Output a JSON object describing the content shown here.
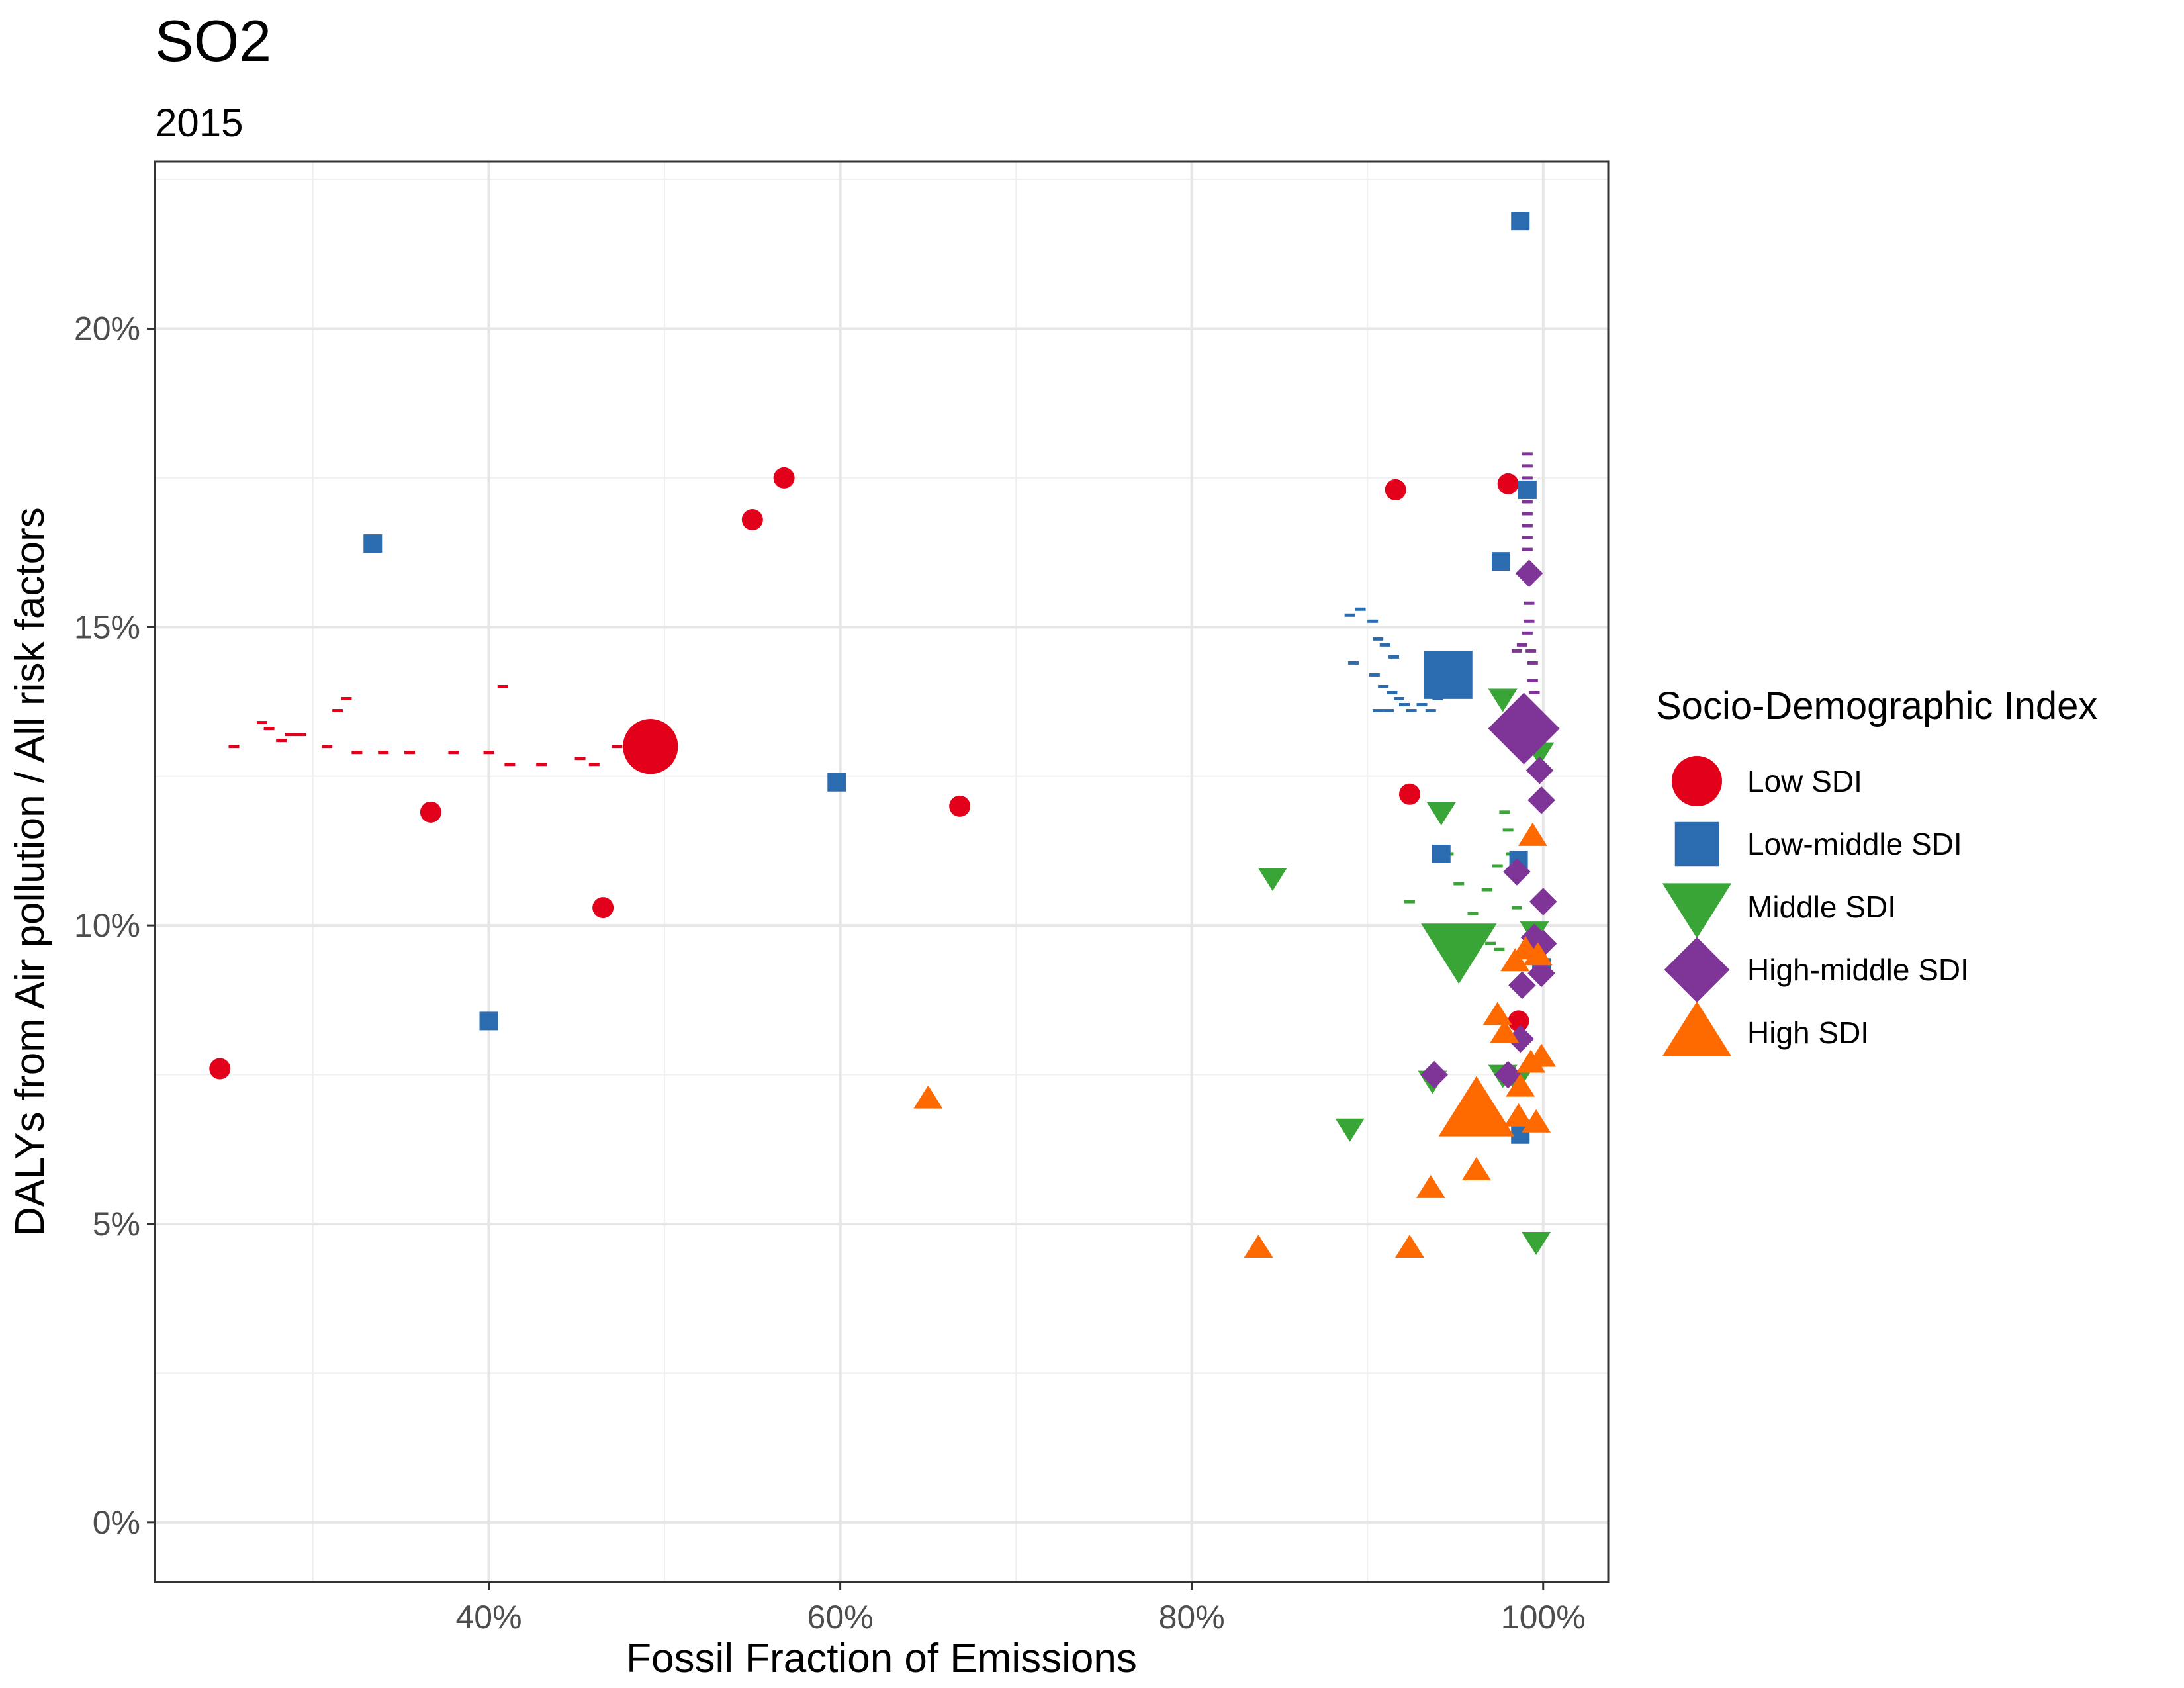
{
  "chart_data": {
    "type": "scatter",
    "title": "SO2",
    "subtitle": "2015",
    "xlabel": "Fossil Fraction of Emissions",
    "ylabel": "DALYs from Air pollution / All risk factors",
    "xlim": [
      0.21,
      1.037
    ],
    "ylim": [
      -0.01,
      0.228
    ],
    "x_ticks": [
      0.4,
      0.6,
      0.8,
      1.0
    ],
    "x_tick_labels": [
      "40%",
      "60%",
      "80%",
      "100%"
    ],
    "y_ticks": [
      0,
      0.05,
      0.1,
      0.15,
      0.2
    ],
    "y_tick_labels": [
      "0%",
      "5%",
      "10%",
      "15%",
      "20%"
    ],
    "grid": true,
    "legend": {
      "title": "Socio-Demographic Index",
      "position": "right",
      "entries": [
        {
          "label": "Low SDI",
          "color": "#e3001b",
          "shape": "circle"
        },
        {
          "label": "Low-middle SDI",
          "color": "#2b6cb0",
          "shape": "square"
        },
        {
          "label": "Middle SDI",
          "color": "#3aa537",
          "shape": "triangle-down"
        },
        {
          "label": "High-middle SDI",
          "color": "#7f3498",
          "shape": "diamond"
        },
        {
          "label": "High SDI",
          "color": "#ff6a00",
          "shape": "triangle-up"
        }
      ]
    },
    "series": [
      {
        "name": "Low SDI",
        "color": "#e3001b",
        "shape": "circle",
        "points": [
          [
            0.247,
            0.076,
            1
          ],
          [
            0.367,
            0.119,
            1
          ],
          [
            0.465,
            0.103,
            1
          ],
          [
            0.492,
            0.13,
            2.6
          ],
          [
            0.55,
            0.168,
            1
          ],
          [
            0.568,
            0.175,
            1
          ],
          [
            0.668,
            0.12,
            1
          ],
          [
            0.916,
            0.173,
            1
          ],
          [
            0.924,
            0.122,
            1
          ],
          [
            0.98,
            0.174,
            1
          ],
          [
            0.986,
            0.084,
            1
          ]
        ],
        "trail": [
          [
            0.255,
            0.13
          ],
          [
            0.271,
            0.134
          ],
          [
            0.275,
            0.133
          ],
          [
            0.282,
            0.131
          ],
          [
            0.287,
            0.132
          ],
          [
            0.293,
            0.132
          ],
          [
            0.308,
            0.13
          ],
          [
            0.314,
            0.136
          ],
          [
            0.319,
            0.138
          ],
          [
            0.325,
            0.129
          ],
          [
            0.34,
            0.129
          ],
          [
            0.355,
            0.129
          ],
          [
            0.38,
            0.129
          ],
          [
            0.4,
            0.129
          ],
          [
            0.412,
            0.127
          ],
          [
            0.43,
            0.127
          ],
          [
            0.452,
            0.128
          ],
          [
            0.46,
            0.127
          ],
          [
            0.473,
            0.13
          ],
          [
            0.408,
            0.14
          ]
        ]
      },
      {
        "name": "Low-middle SDI",
        "color": "#2b6cb0",
        "shape": "square",
        "points": [
          [
            0.334,
            0.164,
            1
          ],
          [
            0.4,
            0.084,
            1
          ],
          [
            0.598,
            0.124,
            1
          ],
          [
            0.942,
            0.112,
            1
          ],
          [
            0.946,
            0.142,
            2.6
          ],
          [
            0.976,
            0.161,
            1
          ],
          [
            0.986,
            0.111,
            1
          ],
          [
            0.987,
            0.065,
            1
          ],
          [
            0.987,
            0.218,
            1
          ],
          [
            0.991,
            0.173,
            1
          ],
          [
            0.999,
            0.093,
            1
          ]
        ],
        "trail": [
          [
            0.89,
            0.152
          ],
          [
            0.896,
            0.153
          ],
          [
            0.903,
            0.151
          ],
          [
            0.906,
            0.148
          ],
          [
            0.91,
            0.147
          ],
          [
            0.915,
            0.145
          ],
          [
            0.892,
            0.144
          ],
          [
            0.904,
            0.142
          ],
          [
            0.909,
            0.14
          ],
          [
            0.914,
            0.139
          ],
          [
            0.918,
            0.138
          ],
          [
            0.921,
            0.137
          ],
          [
            0.906,
            0.136
          ],
          [
            0.912,
            0.136
          ],
          [
            0.925,
            0.136
          ],
          [
            0.931,
            0.137
          ],
          [
            0.936,
            0.136
          ],
          [
            0.94,
            0.138
          ]
        ]
      },
      {
        "name": "Middle SDI",
        "color": "#3aa537",
        "shape": "triangle-down",
        "points": [
          [
            0.846,
            0.108,
            1
          ],
          [
            0.89,
            0.066,
            1
          ],
          [
            0.937,
            0.074,
            1
          ],
          [
            0.942,
            0.119,
            1
          ],
          [
            0.952,
            0.096,
            2.6
          ],
          [
            0.977,
            0.138,
            1
          ],
          [
            0.977,
            0.075,
            1
          ],
          [
            0.985,
            0.074,
            1
          ],
          [
            0.995,
            0.099,
            1
          ],
          [
            0.996,
            0.047,
            1
          ],
          [
            0.998,
            0.129,
            1
          ]
        ],
        "trail": [
          [
            0.924,
            0.104
          ],
          [
            0.946,
            0.112
          ],
          [
            0.952,
            0.107
          ],
          [
            0.96,
            0.102
          ],
          [
            0.968,
            0.106
          ],
          [
            0.974,
            0.11
          ],
          [
            0.978,
            0.119
          ],
          [
            0.98,
            0.116
          ],
          [
            0.982,
            0.112
          ],
          [
            0.985,
            0.103
          ],
          [
            0.97,
            0.097
          ],
          [
            0.975,
            0.096
          ]
        ]
      },
      {
        "name": "High-middle SDI",
        "color": "#7f3498",
        "shape": "diamond",
        "points": [
          [
            0.938,
            0.075,
            1
          ],
          [
            0.96,
            0.07,
            1
          ],
          [
            0.98,
            0.075,
            1
          ],
          [
            0.985,
            0.109,
            1
          ],
          [
            0.987,
            0.081,
            1
          ],
          [
            0.988,
            0.09,
            1
          ],
          [
            0.989,
            0.133,
            2.6
          ],
          [
            0.992,
            0.159,
            1
          ],
          [
            0.995,
            0.098,
            1
          ],
          [
            0.998,
            0.126,
            1
          ],
          [
            0.999,
            0.121,
            1
          ],
          [
            1.0,
            0.104,
            1
          ],
          [
            1.0,
            0.097,
            1
          ],
          [
            0.999,
            0.092,
            1
          ],
          [
            0.998,
            0.133,
            1
          ]
        ],
        "trail": [
          [
            0.991,
            0.179
          ],
          [
            0.991,
            0.177
          ],
          [
            0.991,
            0.175
          ],
          [
            0.991,
            0.173
          ],
          [
            0.991,
            0.171
          ],
          [
            0.991,
            0.169
          ],
          [
            0.991,
            0.167
          ],
          [
            0.991,
            0.165
          ],
          [
            0.991,
            0.163
          ],
          [
            0.991,
            0.16
          ],
          [
            0.992,
            0.154
          ],
          [
            0.992,
            0.151
          ],
          [
            0.991,
            0.149
          ],
          [
            0.988,
            0.147
          ],
          [
            0.985,
            0.146
          ],
          [
            0.993,
            0.146
          ],
          [
            0.994,
            0.144
          ],
          [
            0.994,
            0.141
          ],
          [
            0.995,
            0.139
          ]
        ]
      },
      {
        "name": "High SDI",
        "color": "#ff6a00",
        "shape": "triangle-up",
        "points": [
          [
            0.65,
            0.071,
            1
          ],
          [
            0.838,
            0.046,
            1
          ],
          [
            0.924,
            0.046,
            1
          ],
          [
            0.936,
            0.056,
            1
          ],
          [
            0.962,
            0.059,
            1
          ],
          [
            0.962,
            0.069,
            2.6
          ],
          [
            0.974,
            0.085,
            1
          ],
          [
            0.978,
            0.082,
            1
          ],
          [
            0.984,
            0.094,
            1
          ],
          [
            0.986,
            0.068,
            1
          ],
          [
            0.987,
            0.073,
            1
          ],
          [
            0.99,
            0.096,
            1
          ],
          [
            0.993,
            0.077,
            1
          ],
          [
            0.994,
            0.115,
            1
          ],
          [
            0.996,
            0.067,
            1
          ],
          [
            0.997,
            0.095,
            1
          ],
          [
            0.999,
            0.078,
            1
          ]
        ],
        "trail": []
      }
    ]
  }
}
